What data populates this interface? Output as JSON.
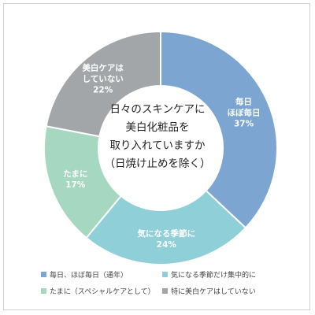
{
  "chart_data": {
    "type": "pie",
    "title": "日々のスキンケアに美白化粧品を取り入れていますか（日焼け止めを除く）",
    "title_lines": [
      "日々のスキンケアに",
      "美白化粧品を",
      "取り入れていますか",
      "（日焼け止めを除く）"
    ],
    "unit": "%",
    "slices": [
      {
        "label": "毎日、ほぼ毎日（通年）",
        "slice_label_lines": [
          "毎日",
          "ほぼ毎日"
        ],
        "value": 37,
        "color": "#7ca6d1",
        "label_color": "#ffffff"
      },
      {
        "label": "気になる季節だけ集中的に",
        "slice_label_lines": [
          "気になる季節に"
        ],
        "value": 24,
        "color": "#8fcfd8",
        "label_color": "#ffffff"
      },
      {
        "label": "たまに（スペシャルケアとして）",
        "slice_label_lines": [
          "たまに"
        ],
        "value": 17,
        "color": "#a6d7c0",
        "label_color": "#ffffff"
      },
      {
        "label": "特に美白ケアはしていない",
        "slice_label_lines": [
          "美白ケアは",
          "していない"
        ],
        "value": 22,
        "color": "#a3a6a8",
        "label_color": "#ffffff"
      }
    ],
    "legend_position": "bottom"
  }
}
